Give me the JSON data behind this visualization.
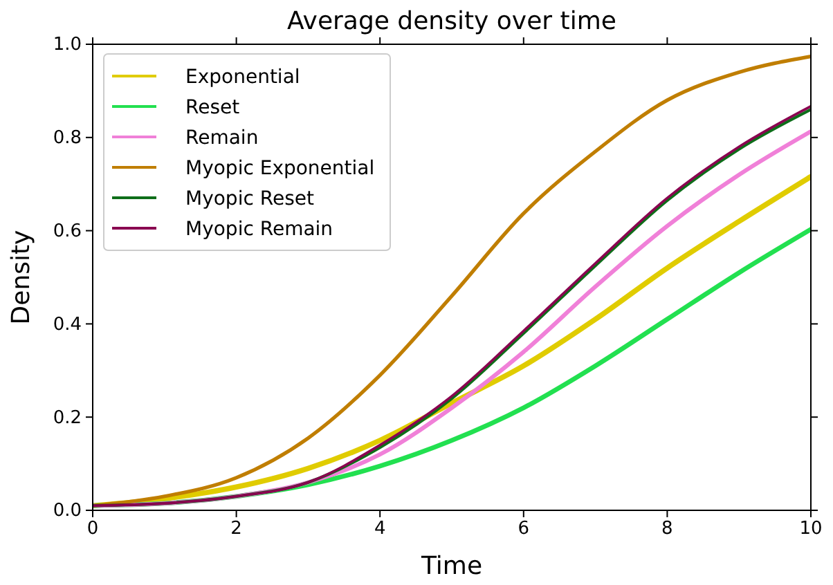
{
  "chart_data": {
    "type": "line",
    "title": "Average density over time",
    "xlabel": "Time",
    "ylabel": "Density",
    "x": [
      0,
      1,
      2,
      3,
      4,
      5,
      6,
      7,
      8,
      9,
      10
    ],
    "series": [
      {
        "name": "Exponential",
        "color": "#e0cc00",
        "values": [
          0.01,
          0.025,
          0.05,
          0.09,
          0.15,
          0.23,
          0.31,
          0.41,
          0.52,
          0.62,
          0.716
        ]
      },
      {
        "name": "Reset",
        "color": "#22e050",
        "values": [
          0.01,
          0.015,
          0.03,
          0.055,
          0.095,
          0.15,
          0.22,
          0.31,
          0.41,
          0.51,
          0.603
        ]
      },
      {
        "name": "Remain",
        "color": "#f080d8",
        "values": [
          0.01,
          0.015,
          0.03,
          0.06,
          0.12,
          0.22,
          0.34,
          0.48,
          0.61,
          0.72,
          0.813
        ]
      },
      {
        "name": "Myopic Exponential",
        "color": "#c07e00",
        "values": [
          0.01,
          0.03,
          0.07,
          0.155,
          0.29,
          0.46,
          0.637,
          0.77,
          0.88,
          0.94,
          0.974
        ]
      },
      {
        "name": "Myopic Reset",
        "color": "#0e6e1a",
        "values": [
          0.01,
          0.015,
          0.03,
          0.06,
          0.135,
          0.24,
          0.38,
          0.525,
          0.665,
          0.775,
          0.86
        ]
      },
      {
        "name": "Myopic Remain",
        "color": "#8a0050",
        "values": [
          0.01,
          0.015,
          0.03,
          0.06,
          0.14,
          0.245,
          0.385,
          0.53,
          0.67,
          0.78,
          0.867
        ]
      }
    ],
    "xlim": [
      0,
      10
    ],
    "xticks": [
      0,
      2,
      4,
      6,
      8,
      10
    ],
    "ylim": [
      0,
      1
    ],
    "yticks": [
      {
        "value": 0,
        "label": "0.0"
      },
      {
        "value": 0.2,
        "label": "0.2"
      },
      {
        "value": 0.4,
        "label": "0.4"
      },
      {
        "value": 0.6,
        "label": "0.6"
      },
      {
        "value": 0.8,
        "label": "0.8"
      },
      {
        "value": 1,
        "label": "1.0"
      }
    ],
    "legend": "top left",
    "grid": false,
    "marker": "none",
    "line_style": "solid"
  }
}
